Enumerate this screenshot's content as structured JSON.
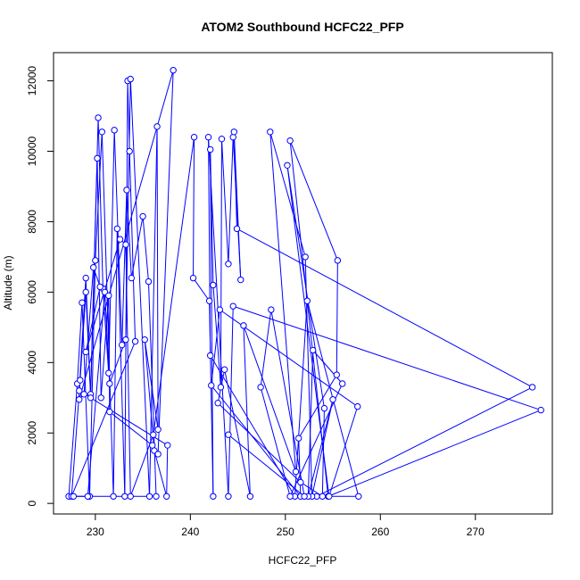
{
  "chart_data": {
    "type": "line",
    "title": "ATOM2 Southbound HCFC22_PFP",
    "xlabel": "HCFC22_PFP",
    "ylabel": "Altitude (m)",
    "xlim": [
      225.6,
      278.1
    ],
    "ylim": [
      -300,
      12800
    ],
    "xticks": [
      230,
      240,
      250,
      260,
      270
    ],
    "yticks": [
      0,
      2000,
      4000,
      6000,
      8000,
      10000,
      12000
    ],
    "grid": false,
    "series": [
      {
        "color": "#0000ff",
        "marker": "open-circle",
        "points": [
          [
            227.2,
            200
          ],
          [
            228.1,
            3400
          ],
          [
            228.6,
            5700
          ],
          [
            229.4,
            200
          ],
          [
            230.0,
            6900
          ],
          [
            230.7,
            10550
          ],
          [
            231.9,
            200
          ],
          [
            232.3,
            7800
          ],
          [
            233.1,
            200
          ],
          [
            233.4,
            12000
          ],
          [
            233.6,
            10000
          ],
          [
            234.2,
            4600
          ],
          [
            227.5,
            200
          ],
          [
            228.4,
            3500
          ],
          [
            229.0,
            6000
          ],
          [
            229.5,
            3100
          ],
          [
            230.3,
            10950
          ],
          [
            230.8,
            6100
          ],
          [
            231.4,
            3700
          ],
          [
            232.0,
            10600
          ],
          [
            232.8,
            4500
          ],
          [
            233.3,
            8900
          ],
          [
            233.8,
            6400
          ],
          [
            235.0,
            8150
          ],
          [
            235.6,
            6300
          ],
          [
            236.4,
            200
          ],
          [
            227.7,
            200
          ],
          [
            229.2,
            200
          ],
          [
            231.0,
            6000
          ],
          [
            231.5,
            3400
          ],
          [
            233.2,
            4650
          ],
          [
            233.7,
            12050
          ],
          [
            235.7,
            200
          ],
          [
            236.5,
            10700
          ],
          [
            236.6,
            2100
          ],
          [
            235.2,
            4650
          ],
          [
            236.2,
            1500
          ],
          [
            237.5,
            200
          ],
          [
            237.6,
            1650
          ],
          [
            228.3,
            3200
          ],
          [
            229.0,
            6400
          ],
          [
            229.5,
            3000
          ],
          [
            230.2,
            9800
          ],
          [
            230.6,
            3000
          ],
          [
            231.4,
            5900
          ],
          [
            231.5,
            2600
          ],
          [
            236.0,
            1650
          ],
          [
            236.6,
            1400
          ],
          [
            238.2,
            12300
          ],
          [
            228.3,
            2950
          ],
          [
            228.8,
            3100
          ],
          [
            229.8,
            6700
          ],
          [
            230.5,
            6150
          ],
          [
            229.0,
            4300
          ],
          [
            232.6,
            7500
          ],
          [
            233.2,
            7350
          ],
          [
            233.7,
            200
          ],
          [
            236.1,
            1950
          ],
          [
            240.4,
            10400
          ],
          [
            240.3,
            6400
          ],
          [
            242.0,
            5750
          ],
          [
            242.4,
            200
          ],
          [
            242.1,
            10050
          ],
          [
            242.4,
            6200
          ],
          [
            243.2,
            3300
          ],
          [
            243.3,
            10350
          ],
          [
            244.0,
            6800
          ],
          [
            244.5,
            10400
          ],
          [
            245.3,
            6350
          ],
          [
            244.6,
            10550
          ],
          [
            244.9,
            7800
          ],
          [
            276.0,
            3300
          ],
          [
            253.3,
            200
          ],
          [
            257.7,
            200
          ],
          [
            252.3,
            5750
          ],
          [
            251.0,
            200
          ],
          [
            242.1,
            4200
          ],
          [
            241.9,
            10400
          ],
          [
            244.0,
            200
          ],
          [
            244.5,
            5600
          ],
          [
            276.9,
            2650
          ],
          [
            254.5,
            200
          ],
          [
            250.5,
            10300
          ],
          [
            255.5,
            6900
          ],
          [
            255.4,
            3650
          ],
          [
            251.4,
            1850
          ],
          [
            251.6,
            200
          ],
          [
            242.2,
            3350
          ],
          [
            243.1,
            5500
          ],
          [
            257.6,
            2750
          ],
          [
            254.6,
            200
          ],
          [
            250.2,
            9600
          ],
          [
            254.1,
            2700
          ],
          [
            253.9,
            200
          ],
          [
            251.6,
            600
          ],
          [
            242.9,
            2850
          ],
          [
            243.6,
            3800
          ],
          [
            246.3,
            200
          ],
          [
            245.6,
            5050
          ],
          [
            251.1,
            900
          ],
          [
            248.4,
            10550
          ],
          [
            252.1,
            7000
          ],
          [
            252.8,
            200
          ],
          [
            255.0,
            2950
          ],
          [
            252.4,
            200
          ],
          [
            252.9,
            4350
          ],
          [
            256.0,
            3400
          ],
          [
            250.5,
            200
          ],
          [
            247.4,
            3300
          ],
          [
            248.5,
            5500
          ],
          [
            252.0,
            200
          ],
          [
            244.0,
            1950
          ]
        ]
      }
    ]
  }
}
